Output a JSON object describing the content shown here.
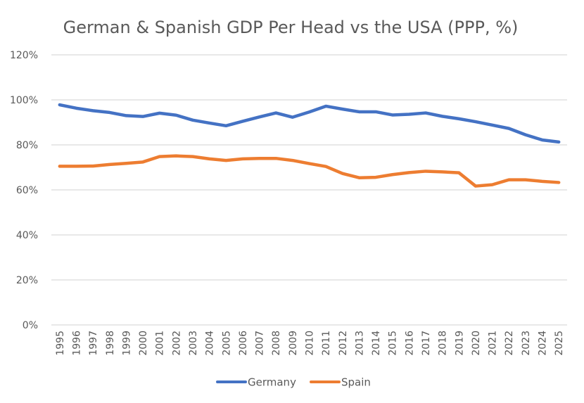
{
  "chart_data": {
    "type": "line",
    "title": "German & Spanish GDP Per Head vs the USA (PPP, %)",
    "xlabel": "",
    "ylabel": "",
    "ylim": [
      0,
      120
    ],
    "y_ticks": [
      0,
      20,
      40,
      60,
      80,
      100,
      120
    ],
    "y_tick_labels": [
      "0%",
      "20%",
      "40%",
      "60%",
      "80%",
      "100%",
      "120%"
    ],
    "grid": true,
    "legend_position": "bottom",
    "categories": [
      "1995",
      "1996",
      "1997",
      "1998",
      "1999",
      "2000",
      "2001",
      "2002",
      "2003",
      "2004",
      "2005",
      "2006",
      "2007",
      "2008",
      "2009",
      "2010",
      "2011",
      "2012",
      "2013",
      "2014",
      "2015",
      "2016",
      "2017",
      "2018",
      "2019",
      "2020",
      "2021",
      "2022",
      "2023",
      "2024",
      "2025"
    ],
    "series": [
      {
        "name": "Germany",
        "color": "#4472c4",
        "values": [
          97.8,
          96.3,
          95.2,
          94.4,
          93.0,
          92.6,
          94.1,
          93.2,
          91.0,
          89.7,
          88.5,
          90.5,
          92.4,
          94.2,
          92.3,
          94.6,
          97.2,
          95.9,
          94.7,
          94.7,
          93.3,
          93.6,
          94.2,
          92.7,
          91.6,
          90.3,
          88.8,
          87.3,
          84.5,
          82.2,
          81.3
        ]
      },
      {
        "name": "Spain",
        "color": "#ed7d31",
        "values": [
          70.5,
          70.5,
          70.6,
          71.3,
          71.8,
          72.4,
          74.8,
          75.1,
          74.8,
          73.8,
          73.1,
          73.8,
          74.0,
          74.0,
          73.1,
          71.7,
          70.4,
          67.3,
          65.4,
          65.6,
          66.8,
          67.7,
          68.3,
          68.0,
          67.6,
          61.7,
          62.3,
          64.5,
          64.5,
          63.8,
          63.3
        ]
      }
    ]
  }
}
